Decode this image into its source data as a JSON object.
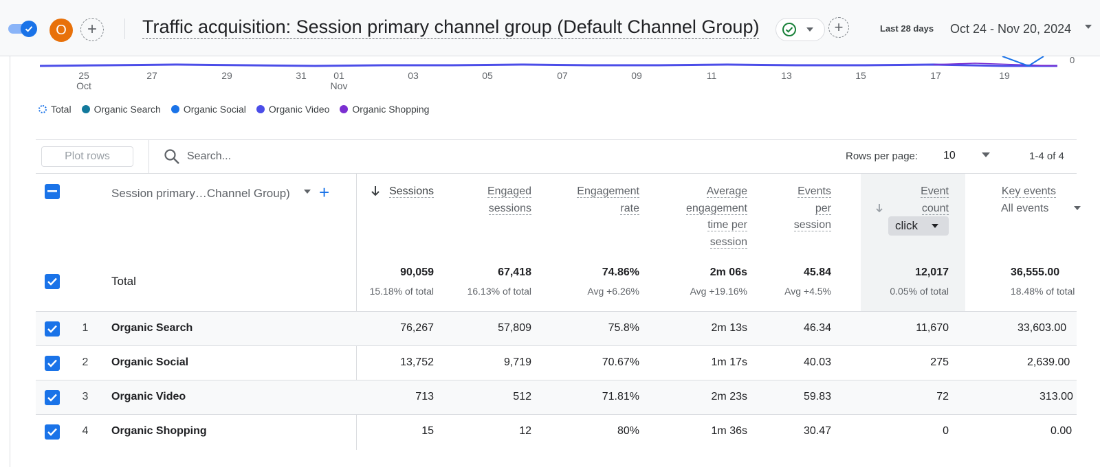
{
  "header": {
    "avatar_letter": "O",
    "title": "Traffic acquisition: Session primary channel group (Default Channel Group)",
    "date_label": "Last 28 days",
    "date_range": "Oct 24 - Nov 20, 2024"
  },
  "chart": {
    "x_ticks": [
      {
        "day": "25",
        "month": "Oct"
      },
      {
        "day": "27",
        "month": ""
      },
      {
        "day": "29",
        "month": ""
      },
      {
        "day": "31",
        "month": ""
      },
      {
        "day": "01",
        "month": "Nov"
      },
      {
        "day": "03",
        "month": ""
      },
      {
        "day": "05",
        "month": ""
      },
      {
        "day": "07",
        "month": ""
      },
      {
        "day": "09",
        "month": ""
      },
      {
        "day": "11",
        "month": ""
      },
      {
        "day": "13",
        "month": ""
      },
      {
        "day": "15",
        "month": ""
      },
      {
        "day": "17",
        "month": ""
      },
      {
        "day": "19",
        "month": ""
      }
    ],
    "y_tick": "0",
    "legend": [
      {
        "label": "Total",
        "color": "#1a73e8"
      },
      {
        "label": "Organic Search",
        "color": "#12799c"
      },
      {
        "label": "Organic Social",
        "color": "#1a73e8"
      },
      {
        "label": "Organic Video",
        "color": "#4b4de8"
      },
      {
        "label": "Organic Shopping",
        "color": "#7b2fd1"
      }
    ]
  },
  "toolbar": {
    "plot_rows_label": "Plot rows",
    "search_placeholder": "Search...",
    "rows_per_page_label": "Rows per page:",
    "rows_per_page_value": "10",
    "pager": "1-4 of 4"
  },
  "table": {
    "dimension_header": "Session primary…Channel Group)",
    "columns": {
      "sessions": [
        "Sessions"
      ],
      "engaged_sessions": [
        "Engaged",
        "sessions"
      ],
      "engagement_rate": [
        "Engagement",
        "rate"
      ],
      "avg_engagement_time": [
        "Average",
        "engagement",
        "time per",
        "session"
      ],
      "events_per_session": [
        "Events",
        "per",
        "session"
      ],
      "event_count": [
        "Event",
        "count"
      ],
      "key_events": [
        "Key events"
      ]
    },
    "event_filter": "click",
    "key_events_filter": "All events",
    "total": {
      "label": "Total",
      "sessions": {
        "value": "90,059",
        "sub": "15.18% of total"
      },
      "engaged_sessions": {
        "value": "67,418",
        "sub": "16.13% of total"
      },
      "engagement_rate": {
        "value": "74.86%",
        "sub": "Avg +6.26%"
      },
      "avg_engagement_time": {
        "value": "2m 06s",
        "sub": "Avg +19.16%"
      },
      "events_per_session": {
        "value": "45.84",
        "sub": "Avg +4.5%"
      },
      "event_count": {
        "value": "12,017",
        "sub": "0.05% of total"
      },
      "key_events": {
        "value": "36,555.00",
        "sub": "18.48% of total"
      }
    },
    "rows": [
      {
        "index": "1",
        "name": "Organic Search",
        "sessions": "76,267",
        "engaged_sessions": "57,809",
        "engagement_rate": "75.8%",
        "avg_engagement_time": "2m 13s",
        "events_per_session": "46.34",
        "event_count": "11,670",
        "key_events": "33,603.00"
      },
      {
        "index": "2",
        "name": "Organic Social",
        "sessions": "13,752",
        "engaged_sessions": "9,719",
        "engagement_rate": "70.67%",
        "avg_engagement_time": "1m 17s",
        "events_per_session": "40.03",
        "event_count": "275",
        "key_events": "2,639.00"
      },
      {
        "index": "3",
        "name": "Organic Video",
        "sessions": "713",
        "engaged_sessions": "512",
        "engagement_rate": "71.81%",
        "avg_engagement_time": "2m 23s",
        "events_per_session": "59.83",
        "event_count": "72",
        "key_events": "313.00"
      },
      {
        "index": "4",
        "name": "Organic Shopping",
        "sessions": "15",
        "engaged_sessions": "12",
        "engagement_rate": "80%",
        "avg_engagement_time": "1m 36s",
        "events_per_session": "30.47",
        "event_count": "0",
        "key_events": "0.00"
      }
    ]
  }
}
